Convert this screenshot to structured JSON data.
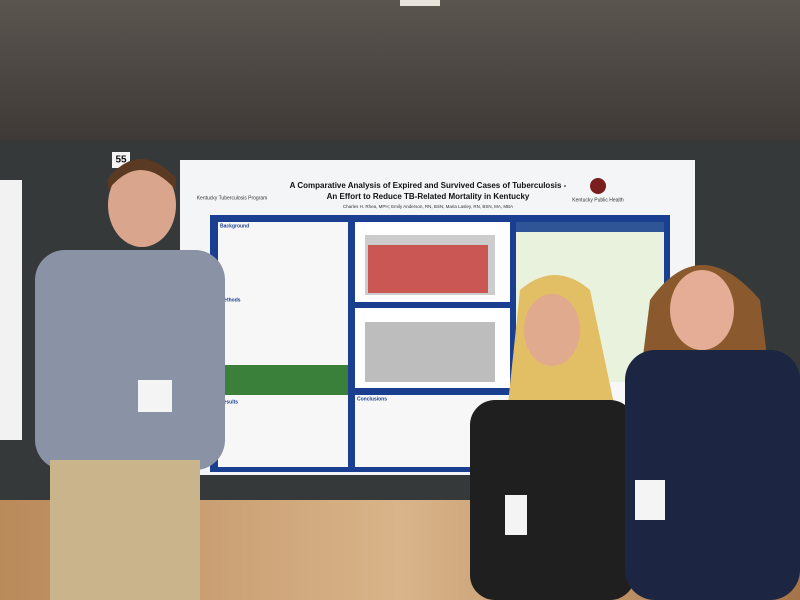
{
  "booth_number": "55",
  "poster": {
    "title_line1": "A Comparative Analysis of Expired and Survived Cases of Tuberculosis -",
    "title_line2": "An Effort to Reduce TB-Related Mortality in Kentucky",
    "authors": "Charles H. Rhea, MPH; Emily Anderson, RN, BSN; Maria Lasley, RN, BSN, MA, MBA",
    "left_logo": "Kentucky Tuberculosis Program",
    "right_logo": "Kentucky Public Health",
    "sections": [
      "Background",
      "Methods",
      "Results",
      "Conclusions"
    ]
  }
}
